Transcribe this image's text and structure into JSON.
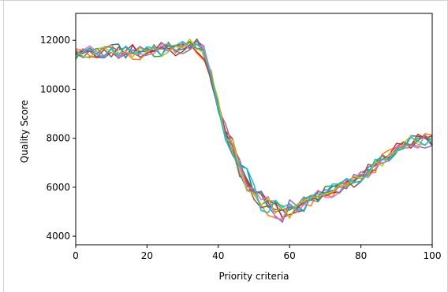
{
  "chart_data": {
    "type": "line",
    "title": "",
    "xlabel": "Priority criteria",
    "ylabel": "Quality Score",
    "xlim": [
      0,
      100
    ],
    "ylim": [
      3650,
      13100
    ],
    "grid": false,
    "legend": "none",
    "xticks": [
      0,
      20,
      40,
      60,
      80,
      100
    ],
    "yticks": [
      4000,
      6000,
      8000,
      10000,
      12000
    ],
    "xtick_labels": [
      "0",
      "20",
      "40",
      "60",
      "80",
      "100"
    ],
    "ytick_labels": [
      "4000",
      "6000",
      "8000",
      "10000",
      "12000"
    ],
    "base_curve": {
      "x": [
        0,
        10,
        20,
        30,
        33,
        36,
        38,
        40,
        42,
        44,
        46,
        48,
        50,
        52,
        55,
        58,
        62,
        66,
        70,
        75,
        80,
        85,
        90,
        95,
        100
      ],
      "y": [
        11500,
        11500,
        11550,
        11700,
        11900,
        11500,
        10500,
        9300,
        8300,
        7600,
        6900,
        6300,
        5800,
        5450,
        5100,
        5000,
        5200,
        5500,
        5800,
        6000,
        6400,
        7000,
        7600,
        7900,
        7900
      ]
    },
    "series_colors": [
      "#1f77b4",
      "#ff7f0e",
      "#2ca02c",
      "#d62728",
      "#9467bd",
      "#8c564b",
      "#e377c2",
      "#7f7f7f",
      "#bcbd22",
      "#17becf"
    ],
    "series": [
      {
        "color": "#1f77b4",
        "noise": [
          55,
          -23,
          54,
          117,
          124,
          226,
          240,
          -173,
          176,
          -46,
          87,
          -3,
          84,
          131,
          -59,
          -46,
          -40,
          -64,
          76,
          -14,
          73,
          -81,
          -131,
          15,
          210,
          -36,
          176,
          67,
          -33,
          35,
          -15,
          42,
          -237,
          117,
          -145,
          -37,
          104,
          112,
          96,
          3,
          152,
          56,
          -140,
          30,
          -91,
          -89,
          -99,
          186,
          128,
          86,
          -140
        ]
      },
      {
        "color": "#ff7f0e",
        "noise": [
          -8,
          85,
          -100,
          -161,
          110,
          221,
          -26,
          -8,
          -214,
          -236,
          -27,
          91,
          19,
          69,
          98,
          11,
          54,
          -216,
          -234,
          185,
          -19,
          -12,
          -57,
          -169,
          -91,
          -39,
          -93,
          -170,
          -143,
          -155,
          31,
          10,
          -29,
          -189,
          132,
          -78,
          -198,
          129,
          39,
          39,
          166,
          -29,
          -205,
          168,
          121,
          19,
          -85,
          -157,
          5,
          206,
          164
        ]
      },
      {
        "color": "#2ca02c",
        "noise": [
          -196,
          109,
          38,
          116,
          -120,
          104,
          -180,
          -29,
          -53,
          -29,
          93,
          -175,
          -187,
          198,
          -131,
          61,
          84,
          -96,
          97,
          18,
          -153,
          -26,
          55,
          24,
          17,
          34,
          121,
          -21,
          147,
          -123,
          39,
          -102,
          117,
          116,
          -113,
          163,
          126,
          31,
          -48,
          -28,
          83,
          -173,
          108,
          122,
          -193,
          -135,
          95,
          -87,
          79,
          97,
          -17
        ]
      },
      {
        "color": "#d62728",
        "noise": [
          -39,
          38,
          36,
          -147,
          -82,
          5,
          -150,
          35,
          209,
          -173,
          -43,
          -22,
          63,
          11,
          -212,
          -114,
          -10,
          -174,
          -187,
          -85,
          108,
          -4,
          171,
          -24,
          -10,
          -21,
          160,
          97,
          117,
          -109,
          -97,
          -153,
          -207,
          103,
          -29,
          -115,
          -74,
          -115,
          110,
          122,
          -27,
          -93,
          -95,
          13,
          -23,
          138,
          18,
          -102,
          191,
          64,
          147
        ]
      },
      {
        "color": "#9467bd",
        "noise": [
          24,
          -33,
          117,
          -143,
          -158,
          4,
          -159,
          -75,
          -39,
          147,
          17,
          112,
          48,
          -55,
          76,
          107,
          -113,
          141,
          181,
          -157,
          -88,
          134,
          36,
          101,
          -102,
          3,
          164,
          7,
          -112,
          -195,
          176,
          29,
          183,
          -29,
          -11,
          78,
          -55,
          46,
          -101,
          203,
          24,
          121,
          64,
          -97,
          -193,
          -6,
          -43,
          -62,
          -167,
          -213,
          -146
        ]
      },
      {
        "color": "#8c564b",
        "noise": [
          -41,
          -137,
          -129,
          -123,
          82,
          -125,
          153,
          -51,
          54,
          8,
          -8,
          4,
          216,
          9,
          80,
          101,
          -116,
          203,
          29,
          -141,
          -61,
          -31,
          29,
          -208,
          -32,
          -134,
          -130,
          12,
          10,
          32,
          -150,
          -36,
          11,
          -12,
          124,
          -23,
          -54,
          145,
          170,
          -174,
          -124,
          211,
          -10,
          30,
          -112,
          38,
          98,
          -173,
          6,
          138,
          -108
        ]
      },
      {
        "color": "#e377c2",
        "noise": [
          113,
          69,
          192,
          17,
          -87,
          114,
          -145,
          -23,
          -25,
          -72,
          -107,
          -86,
          155,
          148,
          -111,
          159,
          -154,
          45,
          149,
          80,
          -79,
          -120,
          80,
          -8,
          -132,
          62,
          18,
          184,
          -152,
          -136,
          88,
          -152,
          -50,
          49,
          164,
          -150,
          -210,
          -121,
          161,
          41,
          174,
          -179,
          -93,
          25,
          -141,
          29,
          -3,
          -94,
          -218,
          179,
          -41
        ]
      },
      {
        "color": "#7f7f7f",
        "noise": [
          99,
          -153,
          58,
          -33,
          169,
          154,
          65,
          137,
          -38,
          -150,
          -107,
          172,
          -175,
          106,
          -71,
          -179,
          -159,
          161,
          -96,
          33,
          78,
          -94,
          46,
          -163,
          -173,
          -13,
          -77,
          105,
          167,
          32,
          44,
          -11,
          67,
          -16,
          -173,
          -8,
          -3,
          -139,
          9,
          -40,
          -105,
          18,
          12,
          150,
          -167,
          -66,
          42,
          -80,
          5,
          141,
          11
        ]
      },
      {
        "color": "#bcbd22",
        "noise": [
          97,
          -105,
          -160,
          102,
          157,
          -7,
          -39,
          16,
          -146,
          110,
          -21,
          116,
          -195,
          -78,
          54,
          -8,
          149,
          -65,
          -16,
          58,
          185,
          -178,
          156,
          -62,
          -205,
          -19,
          -84,
          159,
          -59,
          127,
          -168,
          70,
          67,
          69,
          -25,
          -49,
          -51,
          90,
          -23,
          145,
          -20,
          -132,
          125,
          -181,
          13,
          -121,
          57,
          176,
          -112,
          -111,
          41
        ]
      },
      {
        "color": "#17becf",
        "noise": [
          -111,
          14,
          144,
          -64,
          -132,
          137,
          -104,
          176,
          -20,
          -41,
          131,
          77,
          -170,
          99,
          81,
          182,
          -59,
          58,
          36,
          37,
          -79,
          -157,
          -134,
          -21,
          212,
          142,
          -183,
          -115,
          183,
          82,
          103,
          -94,
          -202,
          112,
          53,
          -33,
          179,
          120,
          200,
          -32,
          -124,
          -56,
          185,
          5,
          -166,
          -68,
          -95,
          140,
          -11,
          -138,
          119
        ]
      }
    ]
  }
}
